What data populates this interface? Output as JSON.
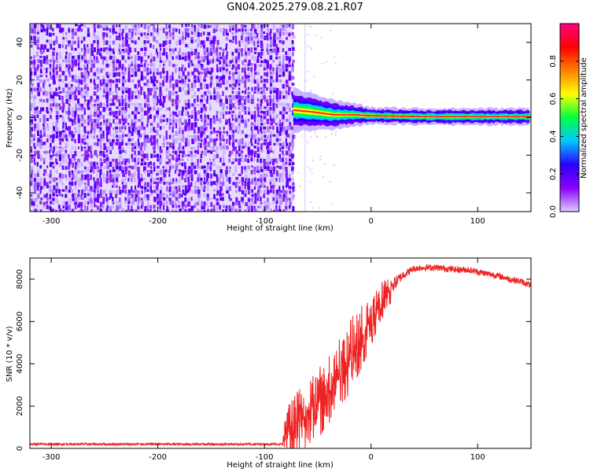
{
  "title": "GN04.2025.279.08.21.R07",
  "colors": {
    "noise": "#6a00ff",
    "snr_line": "#ee2222",
    "ridge": "#ff2020",
    "colorbar_stops": [
      "#dccbff",
      "#8b00ff",
      "#2a00ff",
      "#00c8ff",
      "#00ff40",
      "#ffff00",
      "#ff8000",
      "#ff0000",
      "#ff0080"
    ]
  },
  "chart_data": [
    {
      "type": "heatmap",
      "name": "spectrogram",
      "xlabel": "Height of straight line (km)",
      "ylabel": "Frequency (Hz)",
      "xlim": [
        -320,
        150
      ],
      "ylim": [
        -50,
        50
      ],
      "x_ticks": [
        -300,
        -200,
        -100,
        0,
        100
      ],
      "x_tick_labels": [
        "-300",
        "-200",
        "-100",
        "0",
        "100"
      ],
      "y_ticks": [
        -40,
        -20,
        0,
        20,
        40
      ],
      "y_tick_labels": [
        "-40",
        "-20",
        "0",
        "20",
        "40"
      ],
      "noise_region_x": [
        -320,
        -73
      ],
      "signal_track": [
        {
          "x": -73,
          "y": 4
        },
        {
          "x": -55,
          "y": 3
        },
        {
          "x": -35,
          "y": 1.5
        },
        {
          "x": -15,
          "y": 1.5
        },
        {
          "x": 0,
          "y": 1
        },
        {
          "x": 50,
          "y": 0.5
        },
        {
          "x": 150,
          "y": 0.5
        }
      ],
      "colorbar": {
        "label": "Normalized spectral amplitude",
        "range": [
          0,
          1
        ],
        "ticks": [
          0.0,
          0.2,
          0.4,
          0.6,
          0.8
        ],
        "tick_labels": [
          "0.0",
          "0.2",
          "0.4",
          "0.6",
          "0.8"
        ]
      }
    },
    {
      "type": "line",
      "name": "snr",
      "xlabel": "Height of straight line (km)",
      "ylabel": "SNR (10 * v/v)",
      "xlim": [
        -320,
        150
      ],
      "ylim": [
        0,
        9000
      ],
      "x_ticks": [
        -300,
        -200,
        -100,
        0,
        100
      ],
      "x_tick_labels": [
        "-300",
        "-200",
        "-100",
        "0",
        "100"
      ],
      "y_ticks": [
        0,
        2000,
        4000,
        6000,
        8000
      ],
      "y_tick_labels": [
        "0",
        "2000",
        "4000",
        "6000",
        "8000"
      ],
      "series": [
        {
          "name": "SNR",
          "x": [
            -320,
            -200,
            -100,
            -83,
            -80,
            -70,
            -60,
            -50,
            -40,
            -30,
            -20,
            -10,
            0,
            10,
            20,
            30,
            40,
            50,
            60,
            70,
            80,
            90,
            100,
            110,
            120,
            130,
            140,
            150
          ],
          "y": [
            200,
            200,
            200,
            200,
            800,
            1200,
            1500,
            2100,
            2700,
            3500,
            4300,
            5200,
            6000,
            6900,
            7700,
            8200,
            8500,
            8550,
            8550,
            8500,
            8450,
            8450,
            8350,
            8250,
            8150,
            8000,
            7900,
            7700
          ],
          "spread": [
            100,
            100,
            100,
            100,
            1200,
            1500,
            1600,
            1700,
            1800,
            1800,
            1800,
            1600,
            1200,
            1000,
            700,
            400,
            300,
            300,
            300,
            300,
            300,
            300,
            300,
            300,
            300,
            300,
            300,
            300
          ]
        }
      ]
    }
  ]
}
